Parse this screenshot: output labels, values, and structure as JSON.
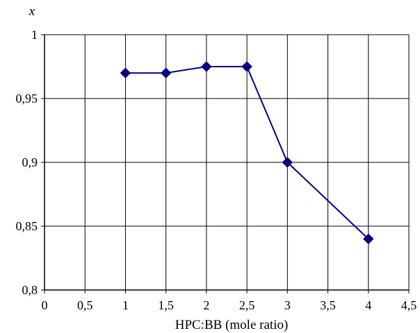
{
  "chart_data": {
    "type": "line",
    "title": "",
    "xlabel": "HPC:BB (mole ratio)",
    "ylabel": "x",
    "xlim": [
      0,
      4.5
    ],
    "ylim": [
      0.8,
      1.0
    ],
    "x_ticks": [
      "0",
      "0,5",
      "1",
      "1,5",
      "2",
      "2,5",
      "3",
      "3,5",
      "4",
      "4,5"
    ],
    "y_ticks": [
      "0,8",
      "0,85",
      "0,9",
      "0,95",
      "1"
    ],
    "grid": true,
    "legend": "none",
    "series": [
      {
        "x": [
          1,
          1.5,
          2,
          2.5,
          3,
          4
        ],
        "y": [
          0.97,
          0.97,
          0.975,
          0.975,
          0.9,
          0.84
        ],
        "color": "#000080",
        "marker": "diamond"
      }
    ]
  }
}
